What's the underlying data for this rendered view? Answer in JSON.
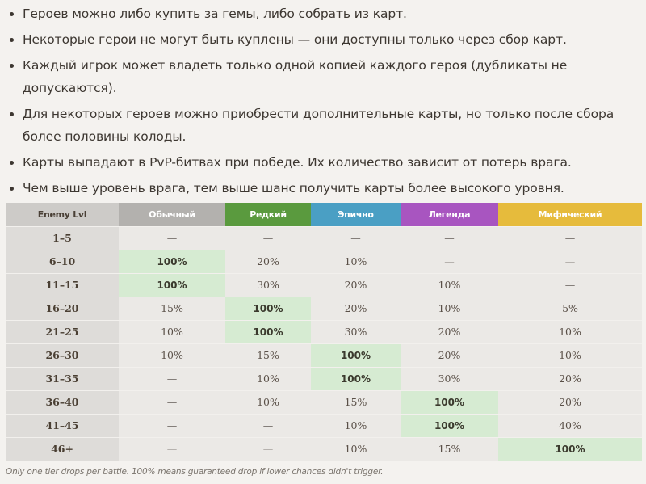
{
  "bullets": [
    {
      "lines": [
        "Героев можно либо купить за гемы, либо собрать из карт."
      ]
    },
    {
      "lines": [
        "Некоторые герои не могут быть куплены — они доступны только через сбор карт."
      ]
    },
    {
      "lines": [
        "Каждый игрок может владеть только одной копией каждого героя (дубликаты не",
        "допускаются)."
      ]
    },
    {
      "lines": [
        "Для некоторых героев можно приобрести дополнительные карты, но только после сбора",
        "более половины колоды."
      ]
    },
    {
      "lines": [
        "Карты выпадают в PvP-битвах при победе. Их количество зависит от потерь врага."
      ]
    },
    {
      "lines": [
        "Чем выше уровень врага, тем выше шанс получить карты более высокого уровня."
      ]
    }
  ],
  "table": {
    "headers": [
      {
        "label": "Enemy Lvl",
        "color": "#cdcbc8"
      },
      {
        "label": "Обычный",
        "color": "#b3b1ae"
      },
      {
        "label": "Редкий",
        "color": "#5a9a3e"
      },
      {
        "label": "Эпично",
        "color": "#4a9fc4"
      },
      {
        "label": "Легенда",
        "color": "#a855c0"
      },
      {
        "label": "Мифический",
        "color": "#e6bb3c"
      }
    ],
    "highlight_color": "#d6ebd2",
    "rows": [
      {
        "lvl": "1–5",
        "cells": [
          "—",
          "—",
          "—",
          "—",
          "—"
        ],
        "hl": -1
      },
      {
        "lvl": "6–10",
        "cells": [
          "100%",
          "20%",
          "10%",
          "—",
          "—"
        ],
        "hl": 0
      },
      {
        "lvl": "11–15",
        "cells": [
          "100%",
          "30%",
          "20%",
          "10%",
          "—"
        ],
        "hl": 0
      },
      {
        "lvl": "16–20",
        "cells": [
          "15%",
          "100%",
          "20%",
          "10%",
          "5%"
        ],
        "hl": 1
      },
      {
        "lvl": "21–25",
        "cells": [
          "10%",
          "100%",
          "30%",
          "20%",
          "10%"
        ],
        "hl": 1
      },
      {
        "lvl": "26–30",
        "cells": [
          "10%",
          "15%",
          "100%",
          "20%",
          "10%"
        ],
        "hl": 2
      },
      {
        "lvl": "31–35",
        "cells": [
          "—",
          "10%",
          "100%",
          "30%",
          "20%"
        ],
        "hl": 2
      },
      {
        "lvl": "36–40",
        "cells": [
          "—",
          "10%",
          "15%",
          "100%",
          "20%"
        ],
        "hl": 3
      },
      {
        "lvl": "41–45",
        "cells": [
          "—",
          "—",
          "10%",
          "100%",
          "40%"
        ],
        "hl": 3
      },
      {
        "lvl": "46+",
        "cells": [
          "—",
          "—",
          "10%",
          "15%",
          "100%"
        ],
        "hl": 4
      }
    ]
  },
  "note": "Only one tier drops per battle. 100% means guaranteed drop if lower chances didn't trigger."
}
